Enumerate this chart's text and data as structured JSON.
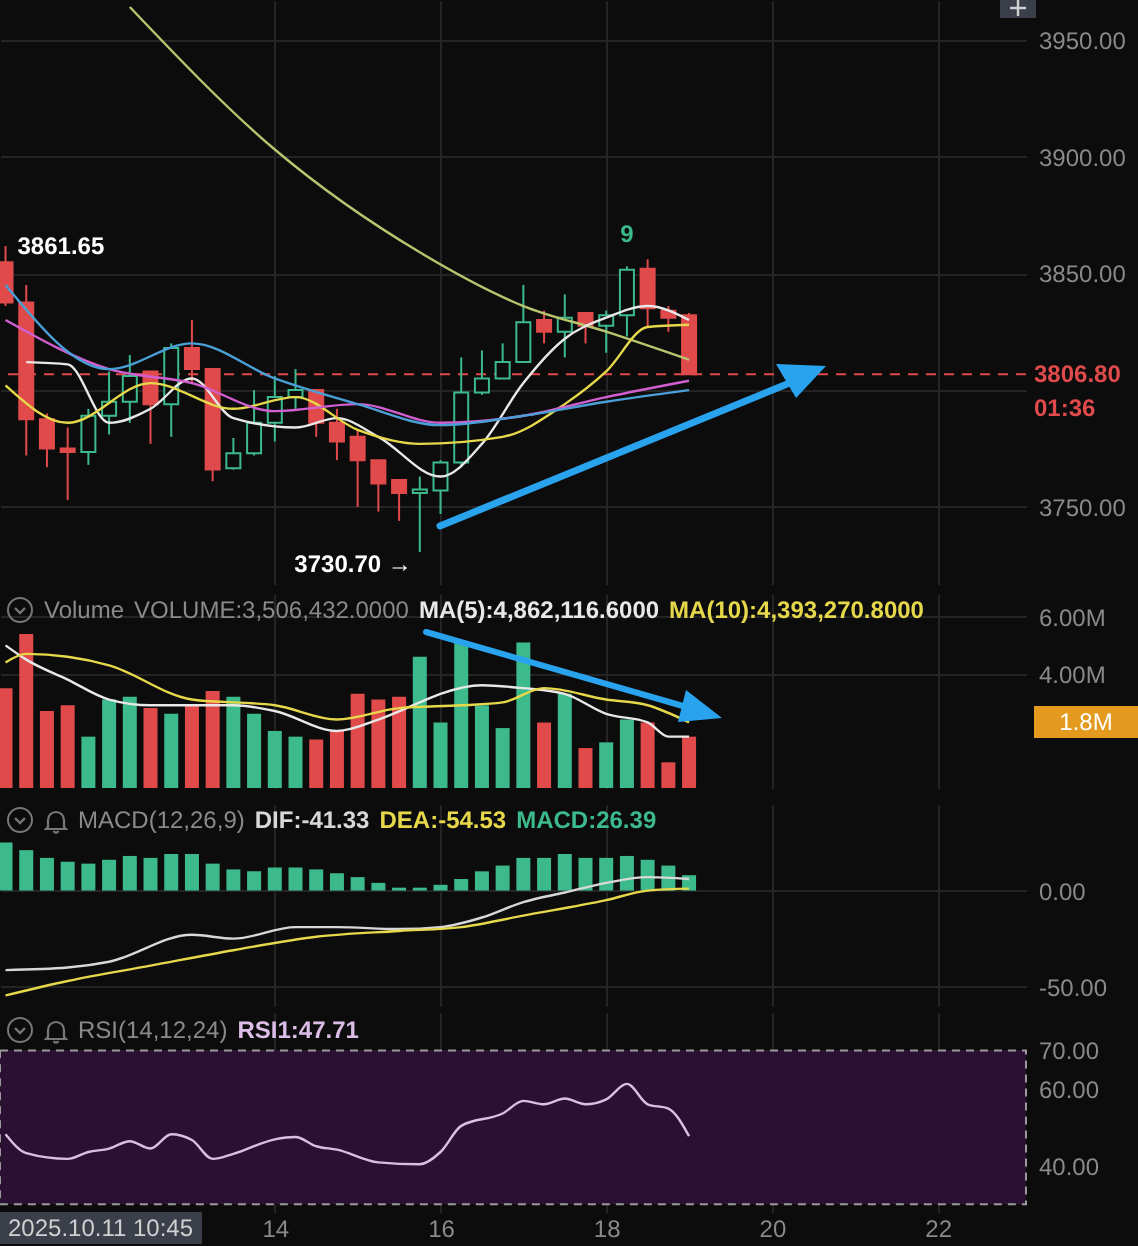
{
  "chart_data": [
    {
      "type": "candlestick",
      "x": [
        "2025-10-10T18:00",
        "2025-10-11T00:00",
        "2025-10-11T06:00",
        "2025-10-11T12:00",
        "2025-10-11T18:00",
        "2025-10-12T00:00",
        "2025-10-12T06:00",
        "2025-10-12T12:00",
        "2025-10-12T18:00",
        "2025-10-13T00:00",
        "2025-10-13T06:00",
        "2025-10-13T12:00",
        "2025-10-13T18:00",
        "2025-10-14T00:00",
        "2025-10-14T06:00",
        "2025-10-14T12:00",
        "2025-10-14T18:00",
        "2025-10-15T00:00",
        "2025-10-15T06:00",
        "2025-10-15T12:00",
        "2025-10-15T18:00",
        "2025-10-16T00:00",
        "2025-10-16T06:00",
        "2025-10-16T12:00",
        "2025-10-16T18:00",
        "2025-10-17T00:00",
        "2025-10-17T06:00",
        "2025-10-17T12:00",
        "2025-10-17T18:00",
        "2025-10-18T00:00",
        "2025-10-18T06:00",
        "2025-10-18T12:00",
        "2025-10-18T18:00",
        "2025-10-19T00:00"
      ],
      "ohlc": [
        [
          3854.7,
          3861.65,
          3836,
          3837.5
        ],
        [
          3837.5,
          3845,
          3772,
          3787.5
        ],
        [
          3787.5,
          3790,
          3767,
          3775
        ],
        [
          3775,
          3784,
          3753,
          3773.5
        ],
        [
          3773.5,
          3792,
          3768,
          3789
        ],
        [
          3789,
          3808,
          3781,
          3795
        ],
        [
          3795,
          3815,
          3786,
          3806
        ],
        [
          3808,
          3808,
          3777,
          3794
        ],
        [
          3794,
          3820,
          3780,
          3818
        ],
        [
          3818,
          3830,
          3803,
          3809
        ],
        [
          3809,
          3809,
          3761,
          3766
        ],
        [
          3766.5,
          3779.5,
          3766,
          3773
        ],
        [
          3773,
          3800,
          3772,
          3786
        ],
        [
          3786,
          3806,
          3778,
          3797
        ],
        [
          3797,
          3809,
          3792,
          3800
        ],
        [
          3800,
          3800,
          3780,
          3786
        ],
        [
          3786,
          3792,
          3770,
          3778
        ],
        [
          3780,
          3783,
          3750,
          3770
        ],
        [
          3770,
          3770,
          3748,
          3760
        ],
        [
          3761.5,
          3761.5,
          3744,
          3756
        ],
        [
          3756,
          3763,
          3730.7,
          3757.5
        ],
        [
          3757,
          3770,
          3747,
          3769
        ],
        [
          3769,
          3814,
          3767,
          3799
        ],
        [
          3799,
          3817,
          3798,
          3805
        ],
        [
          3805,
          3820,
          3805,
          3812
        ],
        [
          3812,
          3845,
          3812,
          3829
        ],
        [
          3830,
          3834,
          3820,
          3825
        ],
        [
          3825,
          3841,
          3814,
          3831
        ],
        [
          3833,
          3833,
          3820,
          3827.5
        ],
        [
          3827.5,
          3834,
          3816,
          3832
        ],
        [
          3832,
          3853,
          3823,
          3851.5
        ],
        [
          3852,
          3856,
          3827,
          3835
        ],
        [
          3834,
          3836,
          3825,
          3831
        ],
        [
          3832,
          3833,
          3806.8,
          3806.8
        ]
      ],
      "series": [
        {
          "type": "line",
          "color": "#b9c46e",
          "x": [
            "2025-10-12T06:00",
            "2025-10-14T00:00",
            "2025-10-15T18:00",
            "2025-10-17T00:00",
            "2025-10-18T00:00",
            "2025-10-19T00:00"
          ],
          "values": [
            3964,
            3903,
            3859,
            3836,
            3825,
            3813
          ]
        },
        {
          "type": "line",
          "color": "#e8e8e8",
          "x": [
            "2025-10-11T00:00",
            "2025-10-11T12:00",
            "2025-10-12T00:00",
            "2025-10-12T12:00",
            "2025-10-13T00:00",
            "2025-10-13T12:00",
            "2025-10-14T06:00",
            "2025-10-14T18:00",
            "2025-10-15T06:00",
            "2025-10-16T00:00",
            "2025-10-16T12:00",
            "2025-10-17T00:00",
            "2025-10-17T12:00",
            "2025-10-18T00:00",
            "2025-10-18T12:00",
            "2025-10-19T00:00"
          ],
          "values": [
            3812,
            3811,
            3786,
            3792,
            3805,
            3788,
            3784,
            3788,
            3780,
            3763,
            3777,
            3803,
            3822,
            3831,
            3836,
            3830
          ]
        },
        {
          "type": "line",
          "color": "#e6d84a",
          "x": [
            "2025-10-10T18:00",
            "2025-10-11T12:00",
            "2025-10-12T12:00",
            "2025-10-13T12:00",
            "2025-10-14T06:00",
            "2025-10-15T00:00",
            "2025-10-15T18:00",
            "2025-10-16T18:00",
            "2025-10-17T12:00",
            "2025-10-18T00:00",
            "2025-10-18T12:00",
            "2025-10-19T00:00"
          ],
          "values": [
            3802,
            3786,
            3803,
            3792,
            3797,
            3783,
            3777,
            3780,
            3794,
            3808,
            3827,
            3828
          ]
        },
        {
          "type": "line",
          "color": "#d25fd0",
          "x": [
            "2025-10-10T18:00",
            "2025-10-12T00:00",
            "2025-10-13T00:00",
            "2025-10-14T00:00",
            "2025-10-15T00:00",
            "2025-10-16T00:00",
            "2025-10-17T00:00",
            "2025-10-18T00:00",
            "2025-10-19T00:00"
          ],
          "values": [
            3830,
            3809,
            3803,
            3791,
            3794,
            3786,
            3789,
            3797,
            3804
          ]
        },
        {
          "type": "line",
          "color": "#4a9fd6",
          "x": [
            "2025-10-10T18:00",
            "2025-10-12T00:00",
            "2025-10-13T00:00",
            "2025-10-14T00:00",
            "2025-10-15T00:00",
            "2025-10-16T00:00",
            "2025-10-17T00:00",
            "2025-10-18T00:00",
            "2025-10-19T00:00"
          ],
          "values": [
            3845,
            3809,
            3820,
            3805,
            3794,
            3785,
            3789,
            3795,
            3800
          ]
        }
      ],
      "xlim": [
        "2025-10-10T16:24",
        "2025-10-23T01:36"
      ],
      "xticks": [
        {
          "value": "2025-10-14",
          "label": null
        },
        {
          "value": "2025-10-16",
          "label": null
        },
        {
          "value": "2025-10-18",
          "label": null
        },
        {
          "value": "2025-10-20",
          "label": null
        },
        {
          "value": "2025-10-22",
          "label": null
        }
      ],
      "ylim": [
        3717,
        3967
      ],
      "yticks": [
        {
          "value": 3750,
          "label": "3750.00"
        },
        {
          "value": 3800,
          "label": null
        },
        {
          "value": 3850,
          "label": "3850.00"
        },
        {
          "value": 3900,
          "label": "3900.00"
        },
        {
          "value": 3950,
          "label": "3950.00"
        }
      ],
      "ref_lines": [
        {
          "axis": "y",
          "value": 3806.8,
          "label": "3806.80",
          "color": "#e04a4a",
          "line_style": "dashed"
        }
      ],
      "annotations": [
        {
          "text": "3861.65",
          "x": "2025-10-10T18:00",
          "y": 3861.65
        },
        {
          "text": "3730.70 →",
          "x": "2025-10-15T18:00",
          "y": 3730.7
        },
        {
          "text": "9",
          "x": "2025-10-18T06:00",
          "y": 3853
        },
        "01:36"
      ],
      "grid": true,
      "tick_labels": "y"
    },
    {
      "type": "bar",
      "title": "Volume",
      "x": [
        "2025-10-10T18:00",
        "2025-10-11T00:00",
        "2025-10-11T06:00",
        "2025-10-11T12:00",
        "2025-10-11T18:00",
        "2025-10-12T00:00",
        "2025-10-12T06:00",
        "2025-10-12T12:00",
        "2025-10-12T18:00",
        "2025-10-13T00:00",
        "2025-10-13T06:00",
        "2025-10-13T12:00",
        "2025-10-13T18:00",
        "2025-10-14T00:00",
        "2025-10-14T06:00",
        "2025-10-14T12:00",
        "2025-10-14T18:00",
        "2025-10-15T00:00",
        "2025-10-15T06:00",
        "2025-10-15T12:00",
        "2025-10-15T18:00",
        "2025-10-16T00:00",
        "2025-10-16T06:00",
        "2025-10-16T12:00",
        "2025-10-16T18:00",
        "2025-10-17T00:00",
        "2025-10-17T06:00",
        "2025-10-17T12:00",
        "2025-10-17T18:00",
        "2025-10-18T00:00",
        "2025-10-18T06:00",
        "2025-10-18T12:00",
        "2025-10-18T18:00",
        "2025-10-19T00:00"
      ],
      "series": [
        {
          "type": "bar",
          "name": "VOLUME:3,506,432.0000",
          "colors": [
            "#e04a4a",
            "#e04a4a",
            "#e04a4a",
            "#e04a4a",
            "#3dba8c",
            "#3dba8c",
            "#3dba8c",
            "#e04a4a",
            "#3dba8c",
            "#e04a4a",
            "#e04a4a",
            "#3dba8c",
            "#3dba8c",
            "#3dba8c",
            "#3dba8c",
            "#e04a4a",
            "#e04a4a",
            "#e04a4a",
            "#e04a4a",
            "#e04a4a",
            "#3dba8c",
            "#3dba8c",
            "#3dba8c",
            "#3dba8c",
            "#3dba8c",
            "#3dba8c",
            "#e04a4a",
            "#3dba8c",
            "#e04a4a",
            "#3dba8c",
            "#3dba8c",
            "#e04a4a",
            "#e04a4a",
            "#e04a4a"
          ],
          "values": [
            3.5,
            5.4,
            2.7,
            2.9,
            1.8,
            3.1,
            3.2,
            2.8,
            2.6,
            2.9,
            3.4,
            3.2,
            2.6,
            2.0,
            1.8,
            1.7,
            2.0,
            3.3,
            3.1,
            3.2,
            4.6,
            2.3,
            5.1,
            2.9,
            2.1,
            5.1,
            2.3,
            3.3,
            1.4,
            1.6,
            2.4,
            2.3,
            0.9,
            1.8
          ]
        },
        {
          "type": "line",
          "name": "MA(5):4,862,116.6000",
          "color": "#e8e8e8",
          "x": [
            "2025-10-10T18:00",
            "2025-10-11T00:00",
            "2025-10-11T12:00",
            "2025-10-12T00:00",
            "2025-10-12T12:00",
            "2025-10-13T00:00",
            "2025-10-13T12:00",
            "2025-10-14T00:00",
            "2025-10-14T18:00",
            "2025-10-15T06:00",
            "2025-10-15T18:00",
            "2025-10-16T00:00",
            "2025-10-16T12:00",
            "2025-10-17T00:00",
            "2025-10-17T12:00",
            "2025-10-18T00:00",
            "2025-10-18T12:00",
            "2025-10-18T18:00",
            "2025-10-19T00:00"
          ],
          "values": [
            5.0,
            4.5,
            3.8,
            3.1,
            2.9,
            2.9,
            2.9,
            2.7,
            2.0,
            2.4,
            3.0,
            3.3,
            3.6,
            3.5,
            3.3,
            2.6,
            2.3,
            1.8,
            1.8
          ]
        },
        {
          "type": "line",
          "name": "MA(10):4,393,270.8000",
          "color": "#e6d84a",
          "x": [
            "2025-10-10T18:00",
            "2025-10-11T00:00",
            "2025-10-11T12:00",
            "2025-10-12T00:00",
            "2025-10-13T00:00",
            "2025-10-14T00:00",
            "2025-10-14T18:00",
            "2025-10-15T12:00",
            "2025-10-16T06:00",
            "2025-10-16T18:00",
            "2025-10-17T06:00",
            "2025-10-18T00:00",
            "2025-10-18T12:00",
            "2025-10-19T00:00"
          ],
          "values": [
            4.4,
            4.7,
            4.6,
            4.3,
            3.1,
            2.9,
            2.4,
            2.8,
            2.9,
            3.0,
            3.5,
            3.1,
            2.9,
            2.3
          ]
        }
      ],
      "xlim": [
        "2025-10-10T16:24",
        "2025-10-23T01:36"
      ],
      "xticks": [
        {
          "value": "2025-10-14",
          "label": null
        },
        {
          "value": "2025-10-16",
          "label": null
        },
        {
          "value": "2025-10-18",
          "label": null
        },
        {
          "value": "2025-10-20",
          "label": null
        },
        {
          "value": "2025-10-22",
          "label": null
        }
      ],
      "ylim": [
        0,
        6.8
      ],
      "yticks": [
        {
          "value": 4,
          "label": "4.00M"
        },
        {
          "value": 6,
          "label": "6.00M"
        }
      ],
      "annotations": [
        "1.8M"
      ],
      "grid": true,
      "tick_labels": "y"
    },
    {
      "type": "bar",
      "title": "MACD(12,26,9)",
      "x": [
        "2025-10-10T18:00",
        "2025-10-11T00:00",
        "2025-10-11T06:00",
        "2025-10-11T12:00",
        "2025-10-11T18:00",
        "2025-10-12T00:00",
        "2025-10-12T06:00",
        "2025-10-12T12:00",
        "2025-10-12T18:00",
        "2025-10-13T00:00",
        "2025-10-13T06:00",
        "2025-10-13T12:00",
        "2025-10-13T18:00",
        "2025-10-14T00:00",
        "2025-10-14T06:00",
        "2025-10-14T12:00",
        "2025-10-14T18:00",
        "2025-10-15T00:00",
        "2025-10-15T06:00",
        "2025-10-15T12:00",
        "2025-10-15T18:00",
        "2025-10-16T00:00",
        "2025-10-16T06:00",
        "2025-10-16T12:00",
        "2025-10-16T18:00",
        "2025-10-17T00:00",
        "2025-10-17T06:00",
        "2025-10-17T12:00",
        "2025-10-17T18:00",
        "2025-10-18T00:00",
        "2025-10-18T06:00",
        "2025-10-18T12:00",
        "2025-10-18T18:00",
        "2025-10-19T00:00"
      ],
      "series": [
        {
          "type": "line",
          "name": "DIF:-41.33",
          "color": "#d8d8d8",
          "x": [
            "2025-10-10T18:00",
            "2025-10-11T12:00",
            "2025-10-12T00:00",
            "2025-10-13T00:00",
            "2025-10-13T12:00",
            "2025-10-14T06:00",
            "2025-10-14T18:00",
            "2025-10-15T12:00",
            "2025-10-16T00:00",
            "2025-10-16T12:00",
            "2025-10-17T00:00",
            "2025-10-17T12:00",
            "2025-10-18T00:00",
            "2025-10-18T12:00",
            "2025-10-19T00:00"
          ],
          "values": [
            -41.33,
            -40,
            -37,
            -23,
            -25,
            -19,
            -19,
            -20,
            -19,
            -14,
            -6,
            -1,
            4,
            7,
            6
          ]
        },
        {
          "type": "line",
          "name": "DEA:-54.53",
          "color": "#e6d84a",
          "x": [
            "2025-10-10T18:00",
            "2025-10-11T12:00",
            "2025-10-12T12:00",
            "2025-10-13T12:00",
            "2025-10-14T12:00",
            "2025-10-15T12:00",
            "2025-10-16T06:00",
            "2025-10-17T00:00",
            "2025-10-18T00:00",
            "2025-10-18T12:00",
            "2025-10-19T00:00"
          ],
          "values": [
            -54.53,
            -47,
            -39,
            -31,
            -24,
            -21,
            -19,
            -13,
            -5,
            0,
            1
          ]
        },
        {
          "type": "bar",
          "name": "MACD:26.39",
          "color": "#3dba8c",
          "values": [
            25,
            21,
            17,
            15,
            14,
            16,
            18,
            17,
            19,
            19,
            14,
            11,
            10,
            12,
            12,
            11,
            9,
            7,
            4,
            1.5,
            1.5,
            3,
            6,
            10,
            13,
            17,
            17,
            19,
            17,
            17,
            18,
            16,
            13,
            8
          ]
        }
      ],
      "xlim": [
        "2025-10-10T16:24",
        "2025-10-23T01:36"
      ],
      "xticks": [
        {
          "value": "2025-10-14",
          "label": null
        },
        {
          "value": "2025-10-16",
          "label": null
        },
        {
          "value": "2025-10-18",
          "label": null
        },
        {
          "value": "2025-10-20",
          "label": null
        },
        {
          "value": "2025-10-22",
          "label": null
        }
      ],
      "ylim": [
        -60,
        45
      ],
      "yticks": [
        {
          "value": -50,
          "label": "-50.00"
        },
        {
          "value": 0,
          "label": "0.00"
        }
      ],
      "grid": true,
      "tick_labels": "y"
    },
    {
      "type": "line",
      "title": "RSI(14,12,24)",
      "series": [
        {
          "name": "RSI1:47.71",
          "color": "#dcbde6",
          "x": [
            "2025-10-10T18:00",
            "2025-10-11T00:00",
            "2025-10-11T12:00",
            "2025-10-11T18:00",
            "2025-10-12T00:00",
            "2025-10-12T06:00",
            "2025-10-12T12:00",
            "2025-10-12T18:00",
            "2025-10-13T00:00",
            "2025-10-13T06:00",
            "2025-10-13T12:00",
            "2025-10-14T00:00",
            "2025-10-14T06:00",
            "2025-10-14T12:00",
            "2025-10-14T18:00",
            "2025-10-15T06:00",
            "2025-10-15T18:00",
            "2025-10-16T00:00",
            "2025-10-16T06:00",
            "2025-10-16T18:00",
            "2025-10-17T00:00",
            "2025-10-17T06:00",
            "2025-10-17T12:00",
            "2025-10-17T18:00",
            "2025-10-18T00:00",
            "2025-10-18T06:00",
            "2025-10-18T12:00",
            "2025-10-18T18:00",
            "2025-10-19T00:00"
          ],
          "values": [
            48.2,
            43.3,
            41.8,
            43.6,
            44.5,
            46.4,
            44.5,
            48.2,
            46.7,
            41.8,
            43.1,
            46.9,
            47.5,
            45.1,
            44.2,
            40.9,
            40.4,
            43.6,
            50.4,
            53.6,
            56.9,
            56.0,
            57.5,
            56.0,
            57.3,
            61.3,
            56.0,
            54.9,
            47.71
          ]
        }
      ],
      "xlim": [
        "2025-10-10T16:24",
        "2025-10-23T01:36"
      ],
      "xticks": [
        {
          "value": "2025-10-14",
          "label": "14"
        },
        {
          "value": "2025-10-16",
          "label": "16"
        },
        {
          "value": "2025-10-18",
          "label": "18"
        },
        {
          "value": "2025-10-20",
          "label": "20"
        },
        {
          "value": "2025-10-22",
          "label": "22"
        }
      ],
      "ylim": [
        28,
        80
      ],
      "yticks": [
        {
          "value": 40,
          "label": "40.00"
        },
        {
          "value": 60,
          "label": "60.00"
        },
        {
          "value": 70,
          "label": "70.00"
        }
      ],
      "bands": [
        {
          "axis": "y",
          "from": 30,
          "to": 70,
          "color": "#2b1034"
        }
      ],
      "annotations": [
        "2025.10.11 10:45"
      ],
      "grid": true
    }
  ]
}
